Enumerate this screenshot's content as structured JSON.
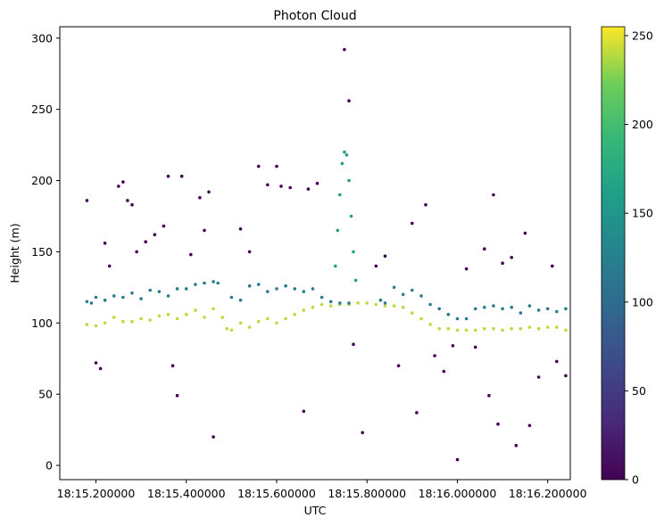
{
  "chart_data": {
    "type": "scatter",
    "title": "Photon Cloud",
    "xlabel": "UTC",
    "ylabel": "Height (m)",
    "x_unit": "seconds after 18:15:00",
    "xlim": [
      15.12,
      16.25
    ],
    "ylim": [
      -10,
      308
    ],
    "xticks": [
      15.2,
      15.4,
      15.6,
      15.8,
      16.0,
      16.2
    ],
    "xtick_labels": [
      "18:15.200000",
      "18:15.400000",
      "18:15.600000",
      "18:15.800000",
      "18:16.000000",
      "18:16.200000"
    ],
    "yticks": [
      0,
      50,
      100,
      150,
      200,
      250,
      300
    ],
    "ytick_labels": [
      "0",
      "50",
      "100",
      "150",
      "200",
      "250",
      "300"
    ],
    "colormap": "viridis",
    "colorbar": {
      "min": 0,
      "max": 255,
      "ticks": [
        0,
        50,
        100,
        150,
        200,
        250
      ],
      "tick_labels": [
        "0",
        "50",
        "100",
        "150",
        "200",
        "250"
      ]
    },
    "grid": false,
    "series": [
      {
        "description_key": "ground",
        "color_value": 240,
        "points": [
          [
            15.18,
            99
          ],
          [
            15.2,
            98
          ],
          [
            15.22,
            100
          ],
          [
            15.24,
            104
          ],
          [
            15.26,
            101
          ],
          [
            15.28,
            101
          ],
          [
            15.3,
            103
          ],
          [
            15.32,
            102
          ],
          [
            15.34,
            105
          ],
          [
            15.36,
            106
          ],
          [
            15.38,
            103
          ],
          [
            15.4,
            106
          ],
          [
            15.42,
            109
          ],
          [
            15.44,
            104
          ],
          [
            15.46,
            110
          ],
          [
            15.48,
            104
          ],
          [
            15.49,
            96
          ],
          [
            15.5,
            95
          ],
          [
            15.52,
            100
          ],
          [
            15.54,
            97
          ],
          [
            15.56,
            101
          ],
          [
            15.58,
            103
          ],
          [
            15.6,
            100
          ],
          [
            15.62,
            103
          ],
          [
            15.64,
            106
          ],
          [
            15.66,
            109
          ],
          [
            15.68,
            111
          ],
          [
            15.7,
            113
          ],
          [
            15.72,
            112
          ],
          [
            15.74,
            113
          ],
          [
            15.76,
            113
          ],
          [
            15.78,
            114
          ],
          [
            15.8,
            114
          ],
          [
            15.82,
            113
          ],
          [
            15.84,
            112
          ],
          [
            15.86,
            112
          ],
          [
            15.88,
            111
          ],
          [
            15.9,
            107
          ],
          [
            15.92,
            103
          ],
          [
            15.94,
            99
          ],
          [
            15.96,
            96
          ],
          [
            15.98,
            96
          ],
          [
            16.0,
            95
          ],
          [
            16.02,
            95
          ],
          [
            16.04,
            95
          ],
          [
            16.06,
            96
          ],
          [
            16.08,
            96
          ],
          [
            16.1,
            95
          ],
          [
            16.12,
            96
          ],
          [
            16.14,
            96
          ],
          [
            16.16,
            97
          ],
          [
            16.18,
            96
          ],
          [
            16.2,
            97
          ],
          [
            16.22,
            97
          ],
          [
            16.24,
            95
          ]
        ]
      },
      {
        "description_key": "canopy",
        "color_value": 120,
        "points": [
          [
            15.18,
            115
          ],
          [
            15.19,
            114
          ],
          [
            15.2,
            118
          ],
          [
            15.22,
            116
          ],
          [
            15.24,
            119
          ],
          [
            15.26,
            118
          ],
          [
            15.28,
            121
          ],
          [
            15.3,
            117
          ],
          [
            15.32,
            123
          ],
          [
            15.34,
            122
          ],
          [
            15.36,
            119
          ],
          [
            15.38,
            124
          ],
          [
            15.4,
            124
          ],
          [
            15.42,
            127
          ],
          [
            15.44,
            128
          ],
          [
            15.46,
            129
          ],
          [
            15.47,
            128
          ],
          [
            15.5,
            118
          ],
          [
            15.52,
            116
          ],
          [
            15.54,
            126
          ],
          [
            15.56,
            127
          ],
          [
            15.58,
            122
          ],
          [
            15.6,
            124
          ],
          [
            15.62,
            126
          ],
          [
            15.64,
            124
          ],
          [
            15.66,
            122
          ],
          [
            15.68,
            124
          ],
          [
            15.7,
            118
          ],
          [
            15.72,
            115
          ],
          [
            15.74,
            114
          ],
          [
            15.76,
            114
          ],
          [
            15.83,
            116
          ],
          [
            15.84,
            114
          ],
          [
            15.86,
            125
          ],
          [
            15.88,
            120
          ],
          [
            15.9,
            123
          ],
          [
            15.92,
            119
          ],
          [
            15.94,
            113
          ],
          [
            15.96,
            110
          ],
          [
            15.98,
            106
          ],
          [
            16.0,
            103
          ],
          [
            16.02,
            103
          ],
          [
            16.04,
            110
          ],
          [
            16.06,
            111
          ],
          [
            16.08,
            112
          ],
          [
            16.1,
            110
          ],
          [
            16.12,
            111
          ],
          [
            16.14,
            107
          ],
          [
            16.16,
            112
          ],
          [
            16.18,
            109
          ],
          [
            16.2,
            110
          ],
          [
            16.22,
            108
          ],
          [
            16.24,
            110
          ]
        ]
      },
      {
        "description_key": "spike",
        "color_value": 160,
        "points": [
          [
            15.73,
            140
          ],
          [
            15.735,
            165
          ],
          [
            15.74,
            190
          ],
          [
            15.745,
            212
          ],
          [
            15.75,
            220
          ],
          [
            15.755,
            218
          ],
          [
            15.76,
            200
          ],
          [
            15.765,
            175
          ],
          [
            15.77,
            150
          ],
          [
            15.775,
            130
          ]
        ]
      },
      {
        "description_key": "noise",
        "color_value": 0,
        "points": [
          [
            15.18,
            186
          ],
          [
            15.2,
            72
          ],
          [
            15.21,
            68
          ],
          [
            15.22,
            156
          ],
          [
            15.23,
            140
          ],
          [
            15.25,
            196
          ],
          [
            15.26,
            199
          ],
          [
            15.27,
            186
          ],
          [
            15.28,
            183
          ],
          [
            15.29,
            150
          ],
          [
            15.31,
            157
          ],
          [
            15.33,
            162
          ],
          [
            15.35,
            168
          ],
          [
            15.36,
            203
          ],
          [
            15.37,
            70
          ],
          [
            15.38,
            49
          ],
          [
            15.39,
            203
          ],
          [
            15.41,
            148
          ],
          [
            15.43,
            188
          ],
          [
            15.44,
            165
          ],
          [
            15.45,
            192
          ],
          [
            15.46,
            20
          ],
          [
            15.52,
            166
          ],
          [
            15.54,
            150
          ],
          [
            15.56,
            210
          ],
          [
            15.58,
            197
          ],
          [
            15.6,
            210
          ],
          [
            15.61,
            196
          ],
          [
            15.63,
            195
          ],
          [
            15.66,
            38
          ],
          [
            15.67,
            194
          ],
          [
            15.69,
            198
          ],
          [
            15.75,
            292
          ],
          [
            15.76,
            256
          ],
          [
            15.77,
            85
          ],
          [
            15.79,
            23
          ],
          [
            15.82,
            140
          ],
          [
            15.84,
            147
          ],
          [
            15.87,
            70
          ],
          [
            15.9,
            170
          ],
          [
            15.91,
            37
          ],
          [
            15.93,
            183
          ],
          [
            15.95,
            77
          ],
          [
            15.97,
            66
          ],
          [
            15.99,
            84
          ],
          [
            16.0,
            4
          ],
          [
            16.02,
            138
          ],
          [
            16.04,
            83
          ],
          [
            16.06,
            152
          ],
          [
            16.07,
            49
          ],
          [
            16.08,
            190
          ],
          [
            16.09,
            29
          ],
          [
            16.1,
            142
          ],
          [
            16.12,
            146
          ],
          [
            16.13,
            14
          ],
          [
            16.15,
            163
          ],
          [
            16.16,
            28
          ],
          [
            16.18,
            62
          ],
          [
            16.21,
            140
          ],
          [
            16.22,
            73
          ],
          [
            16.24,
            63
          ]
        ]
      }
    ]
  }
}
